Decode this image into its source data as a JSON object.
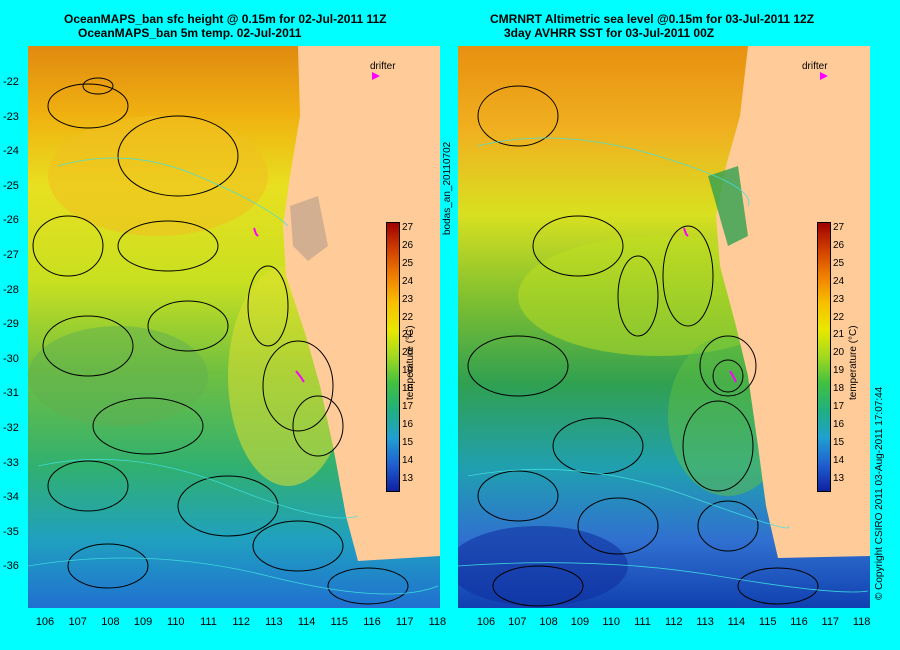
{
  "left_panel": {
    "title_line1": "OceanMAPS_ban sfc height @ 0.15m for 02-Jul-2011 11Z",
    "title_line2": "OceanMAPS_ban 5m temp. 02-Jul-2011"
  },
  "right_panel": {
    "title_line1": "CMRNRT Altimetric sea level  @0.15m  for 03-Jul-2011 12Z",
    "title_line2": "3day AVHRR SST for 03-Jul-2011 00Z"
  },
  "lat_labels": [
    "-22",
    "-23",
    "-24",
    "-25",
    "-26",
    "-27",
    "-28",
    "-29",
    "-30",
    "-31",
    "-32",
    "-33",
    "-34",
    "-35",
    "-36"
  ],
  "lon_labels": [
    "106",
    "107",
    "108",
    "109",
    "110",
    "111",
    "112",
    "113",
    "114",
    "115",
    "116",
    "117",
    "118"
  ],
  "colorbar": {
    "title": "temperature (°C)",
    "ticks": [
      "27",
      "26",
      "25",
      "24",
      "23",
      "22",
      "21",
      "20",
      "19",
      "18",
      "17",
      "16",
      "15",
      "14",
      "13"
    ]
  },
  "drifter_label": "drifter",
  "side_label": "bodas_an_20110702",
  "copyright": "© Copyright CSIRO 2011   03-Aug-2011 17:07:44",
  "colors": {
    "background": "#00ffff",
    "land": "#ffcc99",
    "drifter": "#ff00ff"
  }
}
